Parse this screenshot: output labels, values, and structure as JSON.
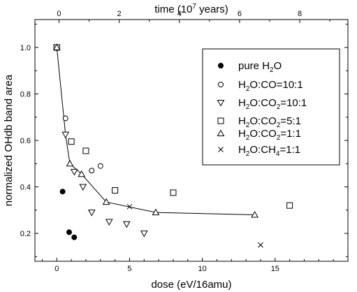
{
  "chart_data": {
    "type": "scatter",
    "xlabel": "dose (eV/16amu)",
    "ylabel": "normalized OHdb band area",
    "top_xlabel": "time (10^7 years)",
    "xlim": [
      -1.5,
      20
    ],
    "ylim": [
      0.08,
      1.12
    ],
    "top_xlim": [
      -0.8,
      9.6
    ],
    "x_ticks": [
      0,
      5,
      10,
      15
    ],
    "top_x_ticks": [
      0,
      2,
      4,
      6,
      8
    ],
    "y_ticks": [
      0.2,
      0.4,
      0.6,
      0.8,
      1.0
    ],
    "y_tick_labels": [
      "0.2",
      "0.4",
      "0.6",
      "0.8",
      "1.0"
    ],
    "grid": false,
    "legend_position": "top-right",
    "series": [
      {
        "name": "pure H2O",
        "marker": "filled-circle",
        "points": [
          [
            0,
            1.0
          ],
          [
            0.4,
            0.38
          ],
          [
            0.85,
            0.205
          ],
          [
            1.2,
            0.183
          ]
        ]
      },
      {
        "name": "H2O:CO=10:1",
        "marker": "open-circle",
        "points": [
          [
            0,
            1.0
          ],
          [
            0.6,
            0.695
          ],
          [
            2.4,
            0.47
          ],
          [
            3.0,
            0.49
          ]
        ]
      },
      {
        "name": "H2O:CO2=10:1",
        "marker": "down-triangle",
        "points": [
          [
            0,
            1.0
          ],
          [
            0.6,
            0.625
          ],
          [
            1.2,
            0.465
          ],
          [
            1.8,
            0.4
          ],
          [
            2.4,
            0.29
          ],
          [
            3.6,
            0.25
          ],
          [
            4.8,
            0.24
          ],
          [
            6.0,
            0.2
          ]
        ]
      },
      {
        "name": "H2O:CO2=5:1",
        "marker": "open-square",
        "points": [
          [
            0,
            1.0
          ],
          [
            1.0,
            0.595
          ],
          [
            2.0,
            0.555
          ],
          [
            4.0,
            0.385
          ],
          [
            8.0,
            0.375
          ],
          [
            16.0,
            0.32
          ]
        ]
      },
      {
        "name": "H2O:CO2=1:1",
        "marker": "up-triangle",
        "points": [
          [
            0,
            1.0
          ],
          [
            0.9,
            0.5
          ],
          [
            1.7,
            0.455
          ],
          [
            3.4,
            0.335
          ],
          [
            6.8,
            0.29
          ],
          [
            13.6,
            0.28
          ]
        ]
      },
      {
        "name": "H2O:CH4=1:1",
        "marker": "cross",
        "points": [
          [
            5.0,
            0.315
          ],
          [
            14.0,
            0.15
          ]
        ]
      }
    ],
    "trend_line": [
      [
        0,
        1.0
      ],
      [
        0.6,
        0.625
      ],
      [
        0.9,
        0.5
      ],
      [
        1.7,
        0.455
      ],
      [
        3.4,
        0.335
      ],
      [
        6.8,
        0.29
      ],
      [
        13.6,
        0.28
      ]
    ]
  }
}
